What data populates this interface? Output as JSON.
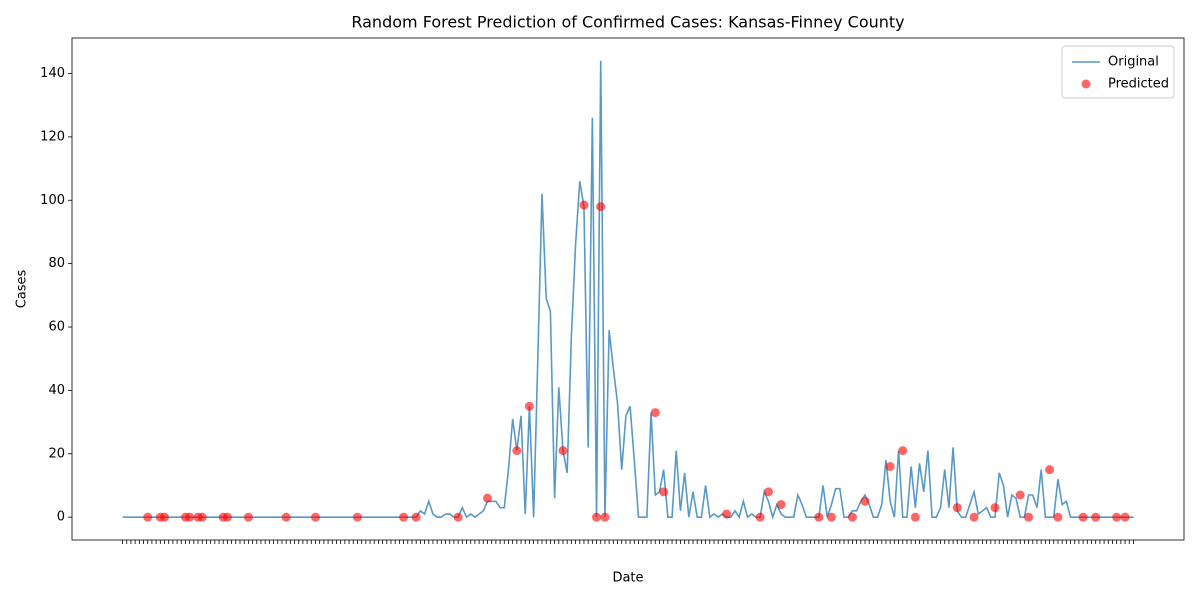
{
  "chart_data": {
    "type": "line",
    "title": "Random Forest Prediction of Confirmed Cases: Kansas-Finney County",
    "x_label": "Date",
    "y_label": "Cases",
    "categories": [
      null,
      null,
      null,
      null,
      null,
      null,
      null,
      null,
      null,
      null,
      null,
      null,
      null,
      null,
      null,
      null,
      null,
      null,
      null,
      null,
      null,
      null,
      null,
      null,
      null,
      null,
      null,
      null,
      null,
      null,
      null,
      null,
      null,
      null,
      null,
      null,
      null,
      null,
      null,
      null,
      null,
      null,
      null,
      null,
      null,
      null,
      null,
      null,
      null,
      null,
      null,
      null,
      null,
      null,
      null,
      null,
      null,
      null,
      null,
      null,
      null,
      null,
      null,
      null,
      null,
      null,
      null,
      null,
      null,
      null,
      null,
      null,
      null,
      null,
      null,
      null,
      null,
      null,
      null,
      null,
      null,
      null,
      null,
      null,
      null,
      null,
      null,
      null,
      null,
      null,
      null,
      null,
      null,
      null,
      null,
      null,
      null,
      null,
      null,
      null,
      null,
      null,
      null,
      null,
      null,
      null,
      null,
      null,
      null,
      null,
      null,
      null,
      null,
      null,
      null,
      null,
      null,
      null,
      null,
      null,
      null,
      null,
      null,
      null,
      null,
      null,
      null,
      null,
      null,
      null,
      null,
      null,
      null,
      null,
      null,
      null,
      null,
      null,
      null,
      null,
      null,
      null,
      null,
      null,
      null,
      null,
      null,
      null,
      null,
      null,
      null,
      null,
      null,
      null,
      null,
      null,
      null,
      null,
      null,
      null,
      null,
      null,
      null,
      null,
      null,
      null,
      null,
      null,
      null,
      null,
      null,
      null,
      null,
      null,
      null,
      null,
      null,
      null,
      null,
      null,
      null,
      null,
      null,
      null,
      null,
      null,
      null,
      null,
      null,
      null,
      null,
      null,
      null,
      null,
      null,
      null,
      null,
      null,
      null,
      null,
      null,
      null,
      null,
      null,
      null,
      null,
      null,
      null,
      null,
      null,
      null,
      null,
      null,
      null,
      null,
      null,
      null,
      null,
      null,
      null,
      null,
      null,
      null,
      null,
      null,
      null,
      null,
      null,
      null,
      null,
      null,
      null,
      null,
      null,
      null,
      null,
      null,
      null,
      null,
      null,
      null,
      null
    ],
    "series": [
      {
        "name": "Original",
        "color": "#1f77b4",
        "style": "line",
        "values": [
          0,
          0,
          0,
          0,
          0,
          0,
          0,
          0,
          0,
          0,
          0,
          0,
          0,
          0,
          0,
          0,
          0,
          0,
          0,
          0,
          0,
          0,
          0,
          0,
          0,
          0,
          0,
          0,
          0,
          0,
          0,
          0,
          0,
          0,
          0,
          0,
          0,
          0,
          0,
          0,
          0,
          0,
          0,
          0,
          0,
          0,
          0,
          0,
          0,
          0,
          0,
          0,
          0,
          0,
          0,
          0,
          0,
          0,
          0,
          0,
          0,
          0,
          0,
          0,
          0,
          0,
          0,
          0,
          0,
          0,
          0,
          2,
          1,
          5,
          1,
          0,
          0,
          1,
          1,
          0,
          0,
          3,
          0,
          1,
          0,
          1,
          2,
          5,
          5,
          5,
          3,
          3,
          15,
          31,
          21,
          32,
          1,
          35,
          0,
          50,
          102,
          69,
          65,
          6,
          41,
          21,
          14,
          57,
          86,
          106,
          98,
          22,
          126,
          0,
          144,
          0,
          59,
          47,
          36,
          15,
          32,
          35,
          18,
          0,
          0,
          0,
          33,
          7,
          8,
          15,
          0,
          0,
          21,
          2,
          14,
          0,
          8,
          0,
          0,
          10,
          0,
          1,
          0,
          1,
          0,
          0,
          2,
          0,
          5,
          0,
          1,
          0,
          0,
          8,
          5,
          0,
          4,
          1,
          0,
          0,
          0,
          7,
          4,
          0,
          0,
          0,
          0,
          10,
          0,
          4,
          9,
          9,
          0,
          0,
          2,
          2,
          5,
          7,
          4,
          0,
          0,
          4,
          18,
          5,
          0,
          21,
          0,
          0,
          16,
          3,
          17,
          8,
          21,
          0,
          0,
          3,
          15,
          3,
          22,
          2,
          0,
          0,
          4,
          8,
          1,
          2,
          3,
          0,
          0,
          14,
          10,
          0,
          7,
          6,
          0,
          0,
          7,
          7,
          3,
          15,
          0,
          0,
          0,
          12,
          4,
          5,
          0,
          0,
          0,
          0,
          0,
          0,
          0,
          0,
          0,
          0,
          0,
          0,
          0,
          0,
          0,
          0
        ]
      },
      {
        "name": "Predicted",
        "color": "#ff0000",
        "style": "scatter",
        "values": [
          null,
          null,
          null,
          null,
          null,
          null,
          0,
          null,
          null,
          0,
          0,
          null,
          null,
          null,
          null,
          0,
          0,
          null,
          0,
          0,
          null,
          null,
          null,
          null,
          0,
          0,
          null,
          null,
          null,
          null,
          0,
          null,
          null,
          null,
          null,
          null,
          null,
          null,
          null,
          0,
          null,
          null,
          null,
          null,
          null,
          null,
          0,
          null,
          null,
          null,
          null,
          null,
          null,
          null,
          null,
          null,
          0,
          null,
          null,
          null,
          null,
          null,
          null,
          null,
          null,
          null,
          null,
          0,
          null,
          null,
          0,
          null,
          null,
          null,
          null,
          null,
          null,
          null,
          null,
          null,
          0,
          null,
          null,
          null,
          null,
          null,
          null,
          6,
          null,
          null,
          null,
          null,
          null,
          null,
          21,
          null,
          null,
          35,
          null,
          null,
          null,
          null,
          null,
          null,
          null,
          21,
          null,
          null,
          null,
          null,
          98.5,
          null,
          null,
          0,
          98,
          0,
          null,
          null,
          null,
          null,
          null,
          null,
          null,
          null,
          null,
          null,
          null,
          33,
          null,
          8,
          null,
          null,
          null,
          null,
          null,
          null,
          null,
          null,
          null,
          null,
          null,
          null,
          null,
          null,
          1,
          null,
          null,
          null,
          null,
          null,
          null,
          null,
          0,
          null,
          8,
          null,
          null,
          4,
          null,
          null,
          null,
          null,
          null,
          null,
          null,
          null,
          0,
          null,
          null,
          0,
          null,
          null,
          null,
          null,
          0,
          null,
          null,
          5,
          null,
          null,
          null,
          null,
          null,
          16,
          null,
          null,
          21,
          null,
          null,
          0,
          null,
          null,
          null,
          null,
          null,
          null,
          null,
          null,
          null,
          3,
          null,
          null,
          null,
          0,
          null,
          null,
          null,
          null,
          3,
          null,
          null,
          null,
          null,
          null,
          7,
          null,
          0,
          null,
          null,
          null,
          null,
          15,
          null,
          0,
          null,
          null,
          null,
          null,
          null,
          0,
          null,
          null,
          0,
          null,
          null,
          null,
          null,
          0,
          null,
          0,
          null,
          null
        ]
      }
    ],
    "ylim": [
      -7.2,
      151.2
    ],
    "yticks": [
      0,
      20,
      40,
      60,
      80,
      100,
      120,
      140
    ],
    "grid": false,
    "legend": "upper right"
  }
}
